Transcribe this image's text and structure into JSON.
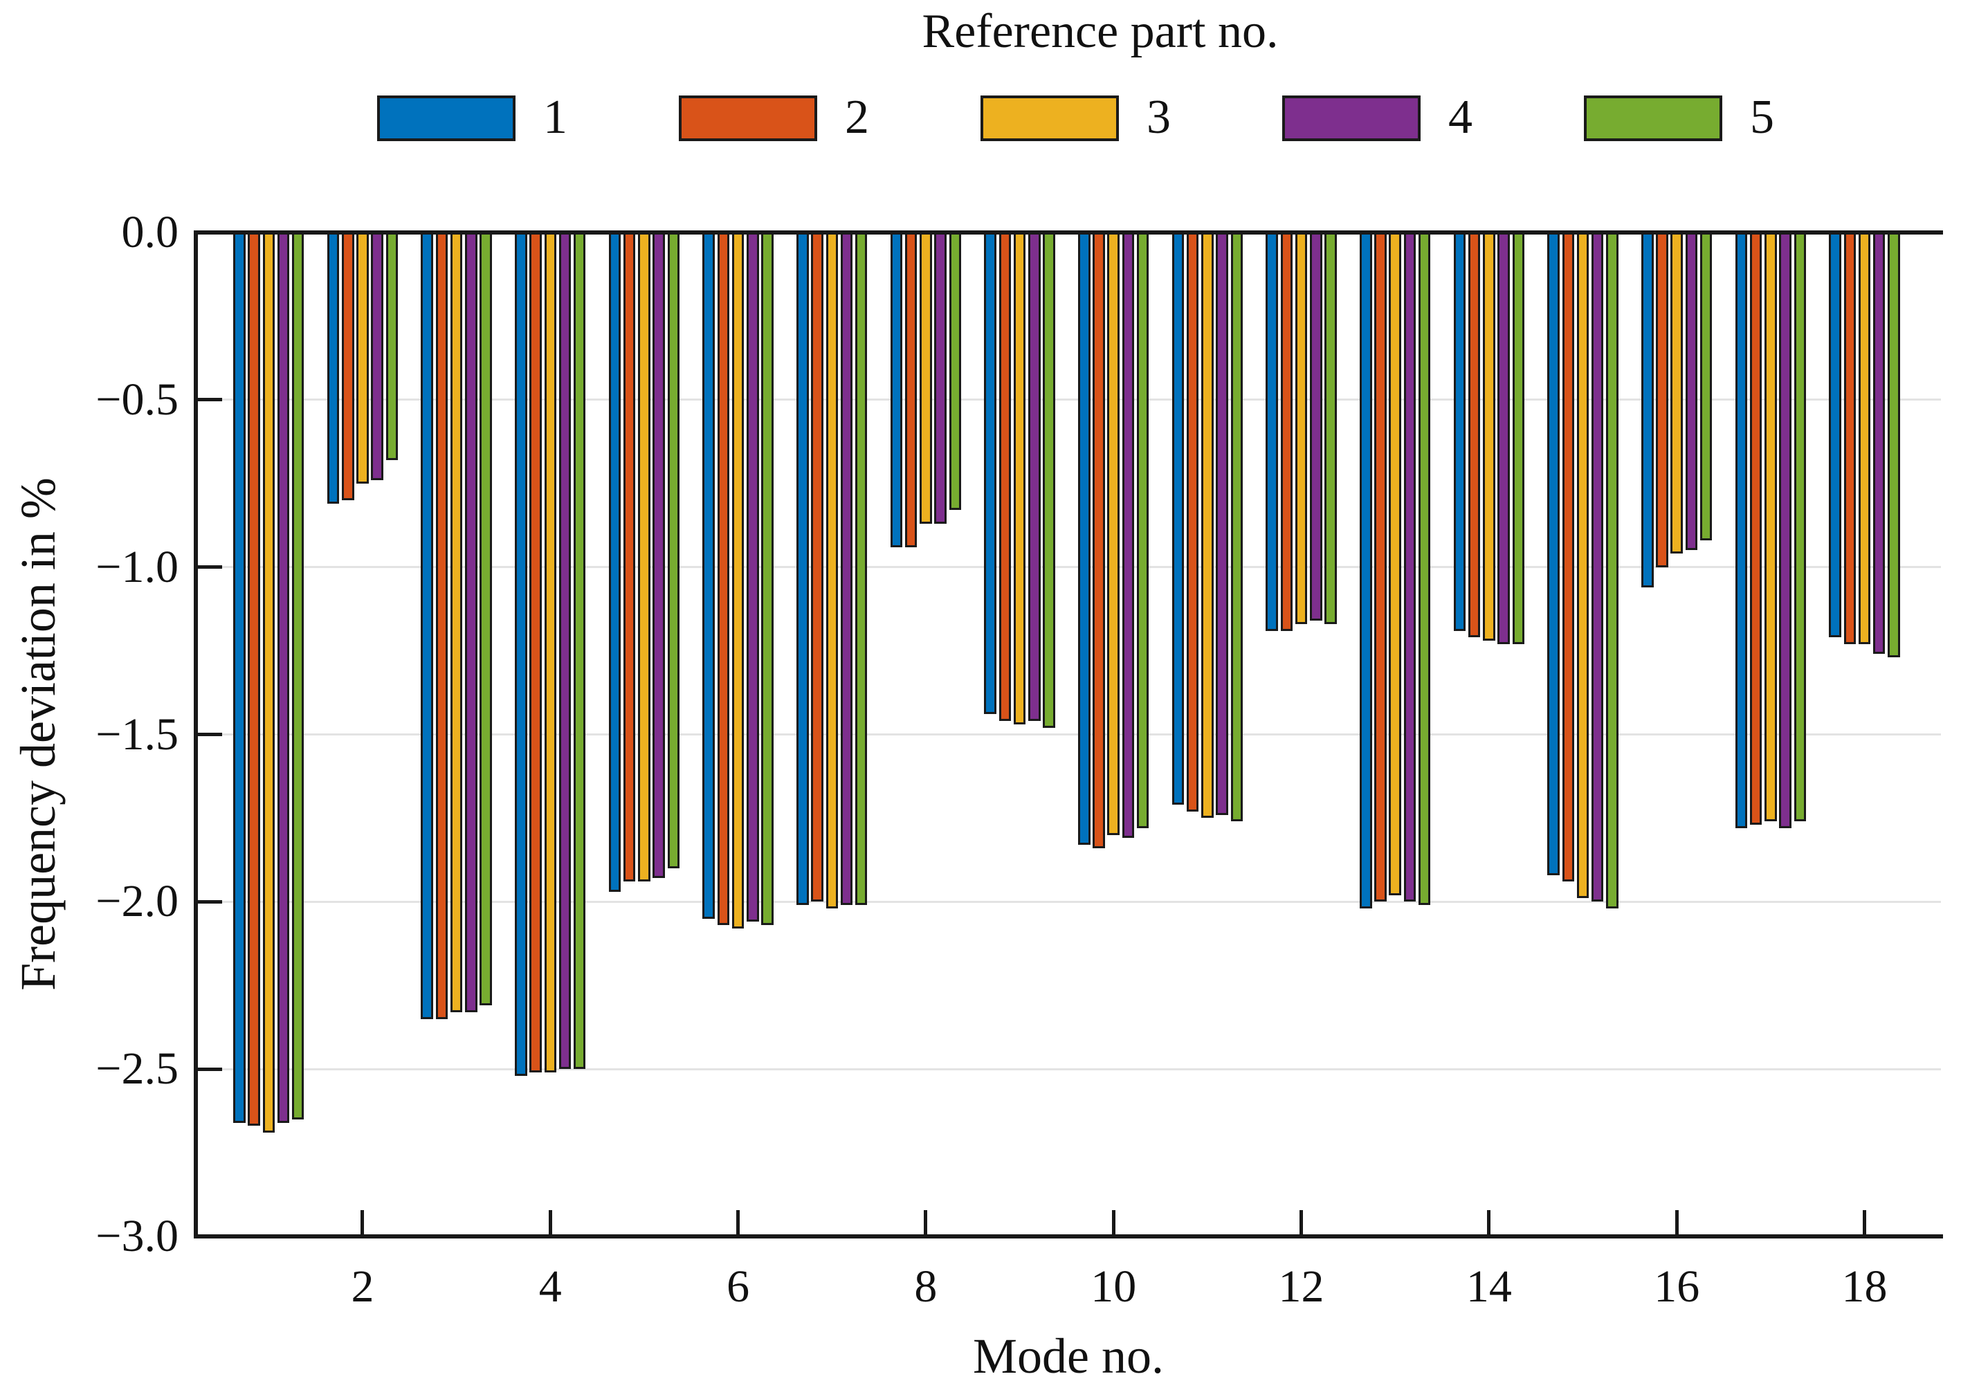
{
  "chart_data": {
    "type": "bar",
    "title": "Reference part no.",
    "xlabel": "Mode no.",
    "ylabel": "Frequency deviation in %",
    "ylim": [
      -3.0,
      0.0
    ],
    "ytick_step": 0.5,
    "ytick_labels": [
      "0.0",
      "−0.5",
      "−1.0",
      "−1.5",
      "−2.0",
      "−2.5",
      "−3.0"
    ],
    "xtick_labels": [
      "2",
      "4",
      "6",
      "8",
      "10",
      "12",
      "14",
      "16",
      "18"
    ],
    "grid": "horizontal-on",
    "legend_position": "top",
    "categories": [
      1,
      2,
      3,
      4,
      5,
      6,
      7,
      8,
      9,
      10,
      11,
      12,
      13,
      14,
      15,
      16,
      17,
      18
    ],
    "series": [
      {
        "name": "1",
        "color": "#0072BD",
        "values": [
          -2.66,
          -0.81,
          -2.35,
          -2.52,
          -1.97,
          -2.05,
          -2.01,
          -0.94,
          -1.44,
          -1.83,
          -1.71,
          -1.19,
          -2.02,
          -1.19,
          -1.92,
          -1.06,
          -1.78,
          -1.21
        ]
      },
      {
        "name": "2",
        "color": "#D95319",
        "values": [
          -2.67,
          -0.8,
          -2.35,
          -2.51,
          -1.94,
          -2.07,
          -2.0,
          -0.94,
          -1.46,
          -1.84,
          -1.73,
          -1.19,
          -2.0,
          -1.21,
          -1.94,
          -1.0,
          -1.77,
          -1.23
        ]
      },
      {
        "name": "3",
        "color": "#EDB120",
        "values": [
          -2.69,
          -0.75,
          -2.33,
          -2.51,
          -1.94,
          -2.08,
          -2.02,
          -0.87,
          -1.47,
          -1.8,
          -1.75,
          -1.17,
          -1.98,
          -1.22,
          -1.99,
          -0.96,
          -1.76,
          -1.23
        ]
      },
      {
        "name": "4",
        "color": "#7E2F8E",
        "values": [
          -2.66,
          -0.74,
          -2.33,
          -2.5,
          -1.93,
          -2.06,
          -2.01,
          -0.87,
          -1.46,
          -1.81,
          -1.74,
          -1.16,
          -2.0,
          -1.23,
          -2.0,
          -0.95,
          -1.78,
          -1.26
        ]
      },
      {
        "name": "5",
        "color": "#77AC30",
        "values": [
          -2.65,
          -0.68,
          -2.31,
          -2.5,
          -1.9,
          -2.07,
          -2.01,
          -0.83,
          -1.48,
          -1.78,
          -1.76,
          -1.17,
          -2.01,
          -1.23,
          -2.02,
          -0.92,
          -1.76,
          -1.27
        ]
      }
    ]
  }
}
